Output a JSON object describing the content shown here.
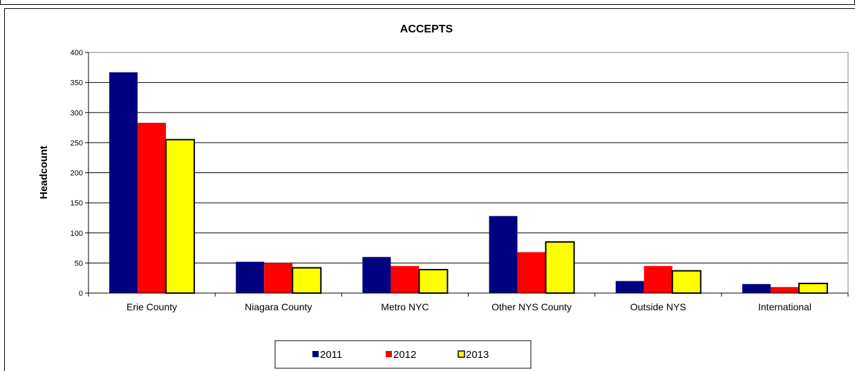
{
  "chart_data": {
    "type": "bar",
    "title": "ACCEPTS",
    "xlabel": "",
    "ylabel": "Headcount",
    "ylim": [
      0,
      400
    ],
    "yticks": [
      0,
      50,
      100,
      150,
      200,
      250,
      300,
      350,
      400
    ],
    "grid": true,
    "legend_position": "bottom",
    "categories": [
      "Erie County",
      "Niagara County",
      "Metro NYC",
      "Other NYS County",
      "Outside NYS",
      "International"
    ],
    "series": [
      {
        "name": "2011",
        "color": "#000080",
        "values": [
          367,
          52,
          60,
          128,
          20,
          15
        ]
      },
      {
        "name": "2012",
        "color": "#ff0000",
        "values": [
          283,
          50,
          45,
          68,
          45,
          10
        ]
      },
      {
        "name": "2013",
        "color": "#ffff00",
        "values": [
          255,
          42,
          39,
          85,
          37,
          16
        ]
      }
    ]
  }
}
